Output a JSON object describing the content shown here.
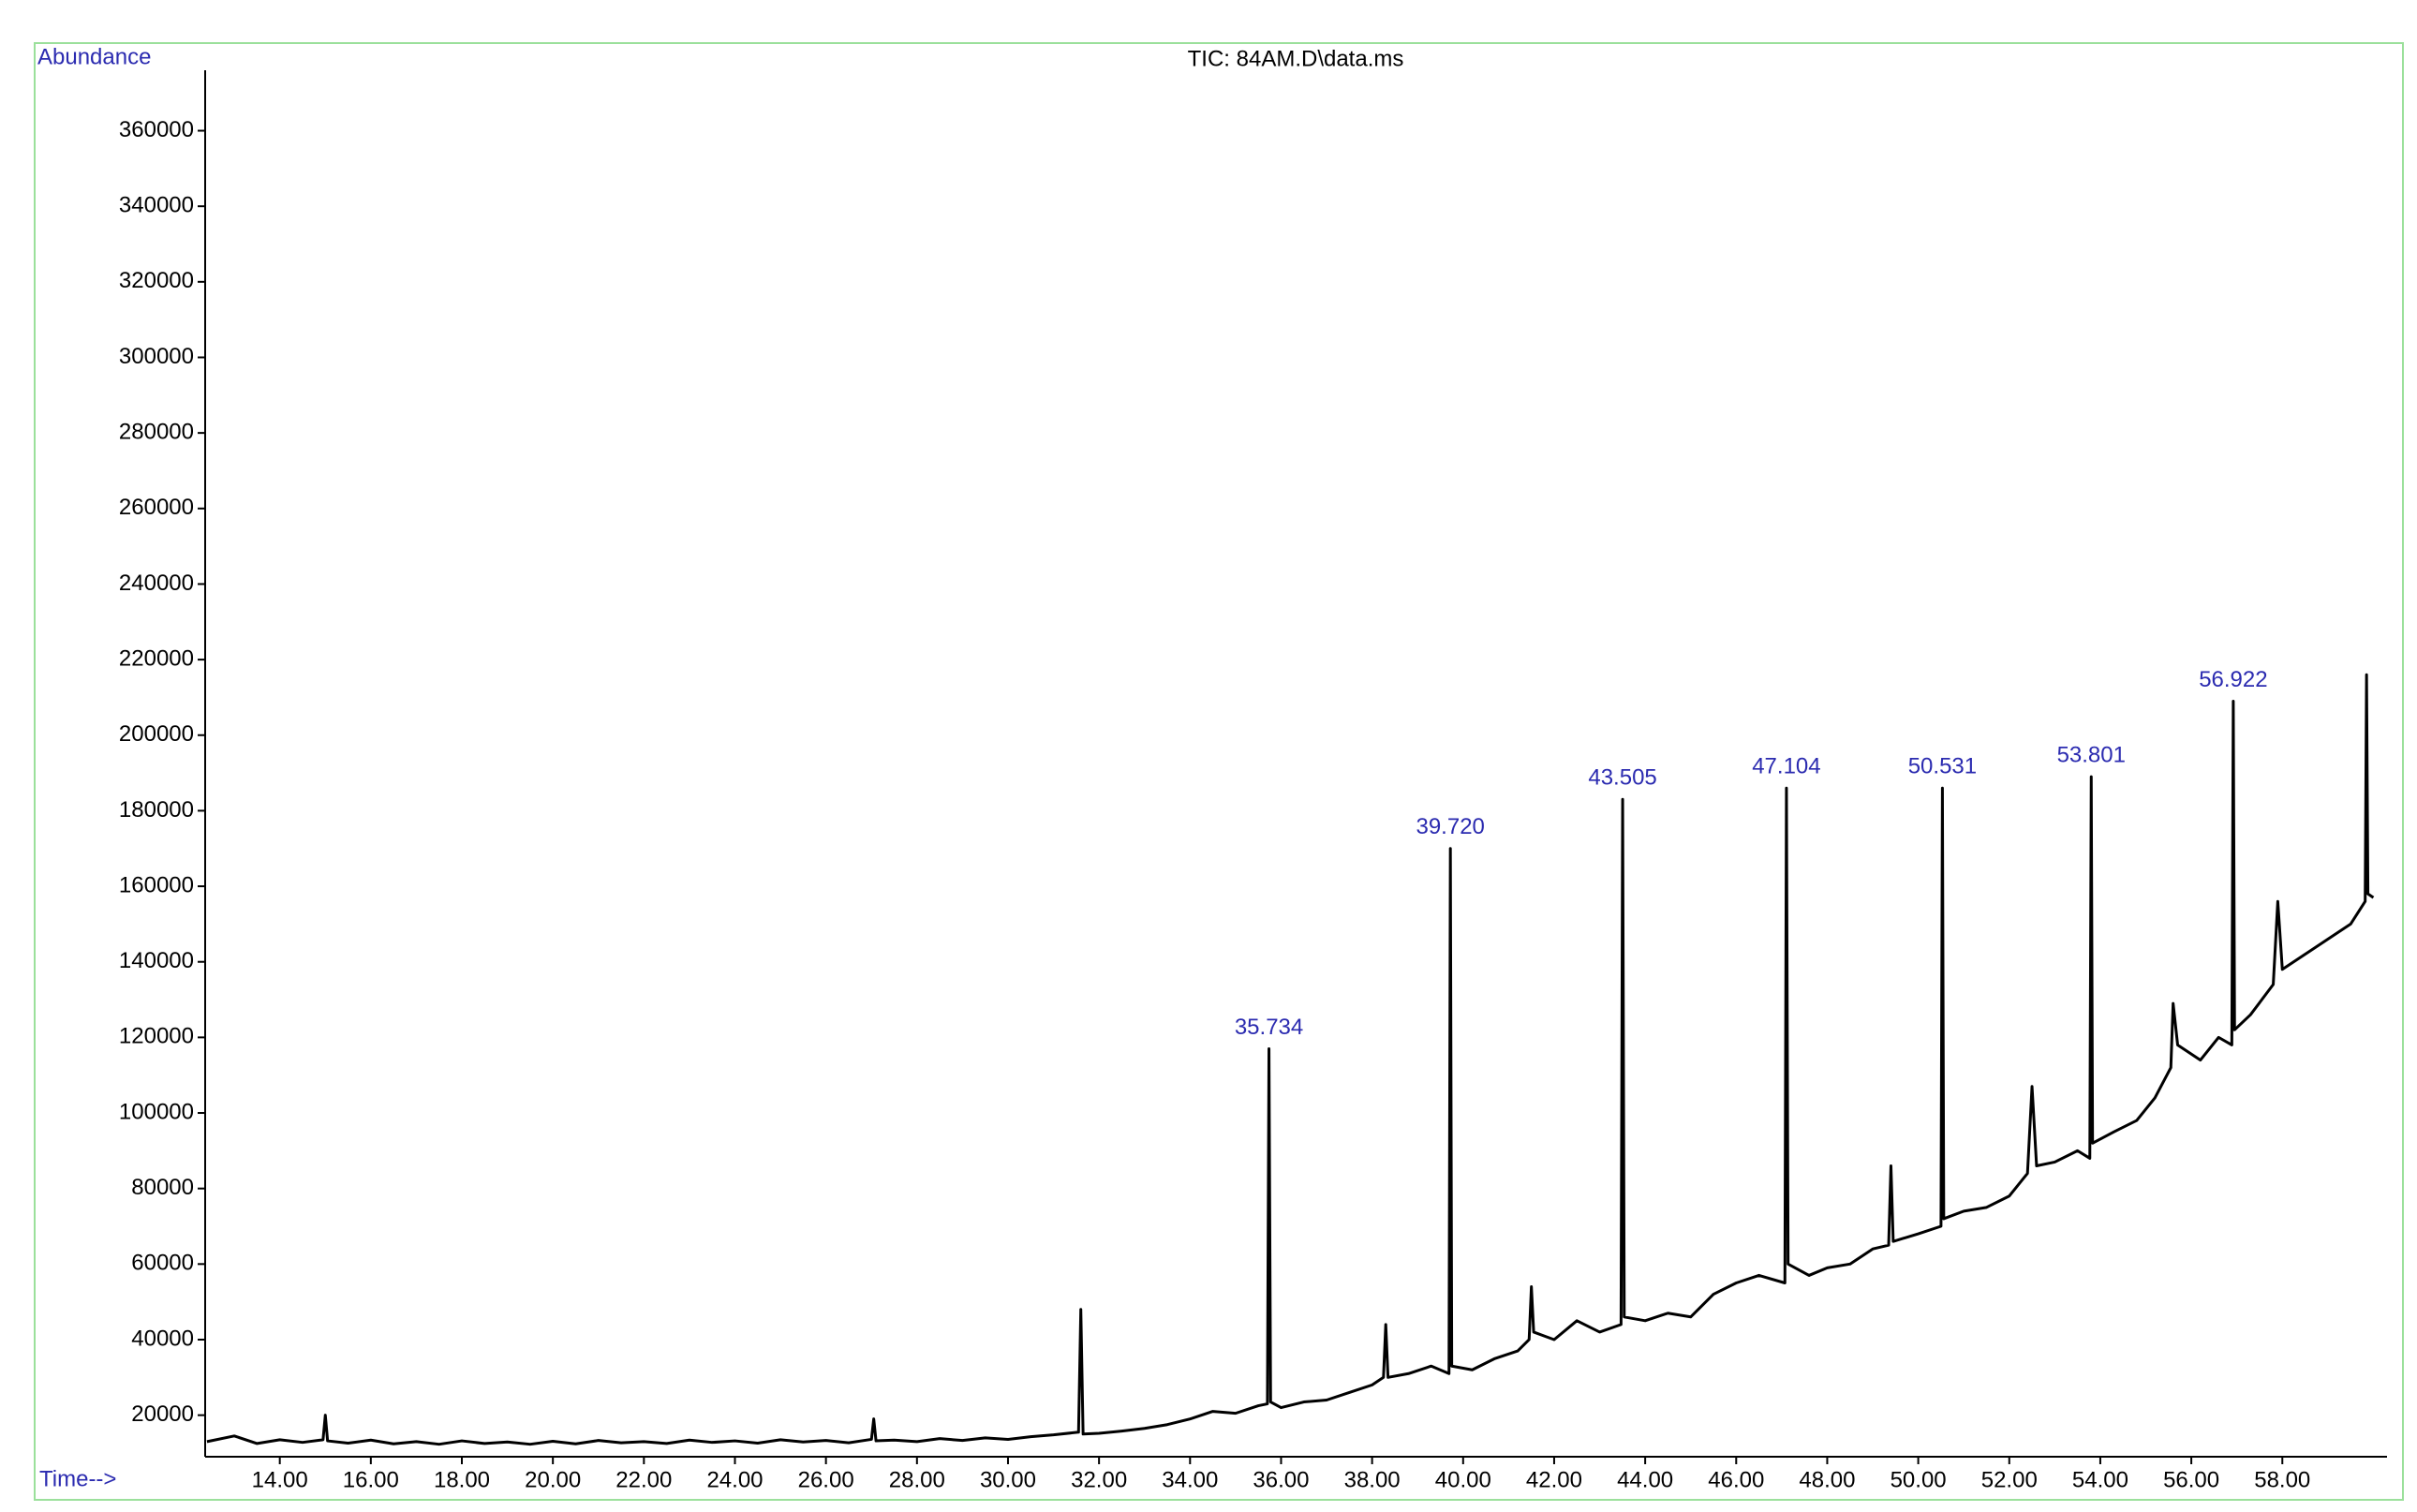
{
  "chart_data": {
    "type": "line",
    "title": "TIC: 84AM.D\\data.ms",
    "ylabel": "Abundance",
    "xlabel": "Time-->",
    "xlim": [
      12.36,
      60.3
    ],
    "ylim": [
      9000,
      376000
    ],
    "xticks": [
      {
        "value": 14,
        "label": "14.00"
      },
      {
        "value": 16,
        "label": "16.00"
      },
      {
        "value": 18,
        "label": "18.00"
      },
      {
        "value": 20,
        "label": "20.00"
      },
      {
        "value": 22,
        "label": "22.00"
      },
      {
        "value": 24,
        "label": "24.00"
      },
      {
        "value": 26,
        "label": "26.00"
      },
      {
        "value": 28,
        "label": "28.00"
      },
      {
        "value": 30,
        "label": "30.00"
      },
      {
        "value": 32,
        "label": "32.00"
      },
      {
        "value": 34,
        "label": "34.00"
      },
      {
        "value": 36,
        "label": "36.00"
      },
      {
        "value": 38,
        "label": "38.00"
      },
      {
        "value": 40,
        "label": "40.00"
      },
      {
        "value": 42,
        "label": "42.00"
      },
      {
        "value": 44,
        "label": "44.00"
      },
      {
        "value": 46,
        "label": "46.00"
      },
      {
        "value": 48,
        "label": "48.00"
      },
      {
        "value": 50,
        "label": "50.00"
      },
      {
        "value": 52,
        "label": "52.00"
      },
      {
        "value": 54,
        "label": "54.00"
      },
      {
        "value": 56,
        "label": "56.00"
      },
      {
        "value": 58,
        "label": "58.00"
      }
    ],
    "yticks": [
      20000,
      40000,
      60000,
      80000,
      100000,
      120000,
      140000,
      160000,
      180000,
      200000,
      220000,
      240000,
      260000,
      280000,
      300000,
      320000,
      340000,
      360000
    ],
    "x": [
      12.4,
      13,
      13.5,
      14,
      14.5,
      14.95,
      15.0,
      15.05,
      15.5,
      16,
      16.5,
      17,
      17.5,
      18,
      18.5,
      19,
      19.5,
      20,
      20.5,
      21,
      21.5,
      22,
      22.5,
      23,
      23.5,
      24,
      24.5,
      25,
      25.5,
      26,
      26.5,
      27,
      27.05,
      27.1,
      27.5,
      28,
      28.5,
      29,
      29.5,
      30,
      30.5,
      31,
      31.55,
      31.6,
      31.65,
      32,
      32.5,
      33,
      33.5,
      34,
      34.5,
      35,
      35.5,
      35.7,
      35.734,
      35.77,
      36,
      36.5,
      37,
      37.5,
      38,
      38.25,
      38.3,
      38.35,
      38.8,
      39.3,
      39.69,
      39.72,
      39.75,
      40.2,
      40.7,
      41.2,
      41.45,
      41.5,
      41.55,
      42,
      42.5,
      43,
      43.47,
      43.505,
      43.54,
      44,
      44.5,
      45,
      45.5,
      46,
      46.5,
      47.07,
      47.104,
      47.14,
      47.6,
      48,
      48.5,
      49,
      49.35,
      49.4,
      49.45,
      50,
      50.5,
      50.531,
      50.56,
      51,
      51.5,
      52,
      52.4,
      52.5,
      52.6,
      53,
      53.5,
      53.77,
      53.801,
      53.83,
      54.3,
      54.8,
      55.2,
      55.55,
      55.6,
      55.7,
      56.2,
      56.6,
      56.89,
      56.922,
      56.95,
      57.3,
      57.8,
      57.9,
      58.0,
      58.5,
      59,
      59.5,
      59.82,
      59.85,
      59.88,
      60.0
    ],
    "series": [
      {
        "color": "#000000",
        "values": [
          13000,
          14500,
          12500,
          13500,
          12800,
          13500,
          20000,
          13200,
          12600,
          13400,
          12400,
          13000,
          12300,
          13200,
          12500,
          12900,
          12300,
          13100,
          12400,
          13300,
          12700,
          13000,
          12500,
          13400,
          12800,
          13200,
          12600,
          13500,
          12900,
          13300,
          12700,
          13600,
          19000,
          13200,
          13400,
          13000,
          13800,
          13300,
          14000,
          13600,
          14300,
          14800,
          15500,
          48000,
          15000,
          15200,
          15800,
          16500,
          17500,
          19000,
          21000,
          20500,
          22500,
          23000,
          117000,
          23500,
          22000,
          23500,
          24000,
          26000,
          28000,
          30000,
          44000,
          30000,
          31000,
          33000,
          31000,
          170000,
          33000,
          32000,
          35000,
          37000,
          40000,
          54000,
          42000,
          40000,
          45000,
          42000,
          44000,
          183000,
          46000,
          45000,
          47000,
          46000,
          52000,
          55000,
          57000,
          55000,
          186000,
          60000,
          57000,
          59000,
          60000,
          64000,
          65000,
          86000,
          66000,
          68000,
          70000,
          186000,
          72000,
          74000,
          75000,
          78000,
          84000,
          107000,
          86000,
          87000,
          90000,
          88000,
          189000,
          92000,
          95000,
          98000,
          104000,
          112000,
          129000,
          118000,
          114000,
          120000,
          118000,
          209000,
          122000,
          126000,
          134000,
          156000,
          138000,
          142000,
          146000,
          150000,
          156000,
          216000,
          158000,
          157000
        ]
      }
    ],
    "annotations": [
      {
        "text": "35.734",
        "x": 35.734,
        "y": 117000
      },
      {
        "text": "39.720",
        "x": 39.72,
        "y": 170000
      },
      {
        "text": "43.505",
        "x": 43.505,
        "y": 183000
      },
      {
        "text": "47.104",
        "x": 47.104,
        "y": 186000
      },
      {
        "text": "50.531",
        "x": 50.531,
        "y": 186000
      },
      {
        "text": "53.801",
        "x": 53.801,
        "y": 189000
      },
      {
        "text": "56.922",
        "x": 56.922,
        "y": 209000
      }
    ]
  }
}
